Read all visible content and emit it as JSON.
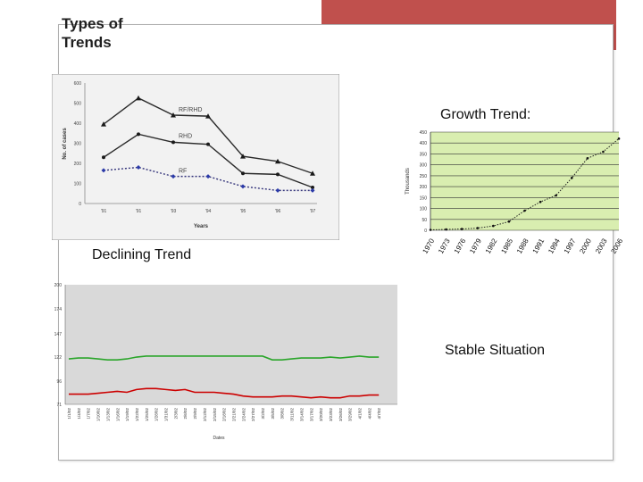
{
  "slide": {
    "title_line1": "Types of",
    "title_line2": "Trends",
    "labels": {
      "growth": "Growth Trend:",
      "declining": "Declining Trend",
      "stable": "Stable Situation"
    }
  },
  "colors": {
    "accent_block": "#c0504d",
    "green_band": "#d9eeb0",
    "gray_plot": "#d9d9d9"
  },
  "chart_data": [
    {
      "type": "line",
      "x": [
        "'91",
        "'91",
        "'93",
        "'94",
        "'95",
        "'96",
        "'97"
      ],
      "xlabel": "Years",
      "ylabel": "No. of cases",
      "yticks": [
        "0",
        "100",
        "200",
        "300",
        "400",
        "500",
        "600"
      ],
      "ylim": [
        0,
        600
      ],
      "series": [
        {
          "name": "RF/RHD",
          "values": [
            395,
            525,
            440,
            435,
            235,
            210,
            150
          ]
        },
        {
          "name": "RHD",
          "values": [
            230,
            345,
            305,
            295,
            150,
            145,
            80
          ]
        },
        {
          "name": "RF",
          "values": [
            165,
            180,
            135,
            135,
            85,
            65,
            65
          ]
        }
      ],
      "legend": "inline"
    },
    {
      "type": "line",
      "x": [
        "1970",
        "1973",
        "1976",
        "1979",
        "1982",
        "1985",
        "1988",
        "1991",
        "1994",
        "1997",
        "2000",
        "2003",
        "2006"
      ],
      "ylabel": "Thousands",
      "yticks": [
        "0",
        "50",
        "100",
        "150",
        "200",
        "250",
        "300",
        "350",
        "400",
        "450"
      ],
      "ylim": [
        0,
        450
      ],
      "series": [
        {
          "values": [
            2,
            4,
            6,
            10,
            20,
            40,
            90,
            130,
            160,
            240,
            330,
            360,
            420
          ]
        }
      ]
    },
    {
      "type": "line",
      "x": [
        "1/1/02",
        "1/4/02",
        "1/7/02",
        "1/10/02",
        "1/13/02",
        "1/16/02",
        "1/19/02",
        "1/22/02",
        "1/25/02",
        "1/28/02",
        "1/31/02",
        "2/3/02",
        "2/6/02",
        "2/9/02",
        "2/12/02",
        "2/15/02",
        "2/18/02",
        "2/21/02",
        "2/24/02",
        "2/27/02",
        "3/2/02",
        "3/5/02",
        "3/8/02",
        "3/11/02",
        "3/14/02",
        "3/17/02",
        "3/20/02",
        "3/23/02",
        "3/26/02",
        "3/29/02",
        "4/1/02",
        "4/4/02",
        "4/7/02"
      ],
      "xlabel": "Dates",
      "yticks": [
        "71",
        "96",
        "122",
        "147",
        "174",
        "200"
      ],
      "ylim": [
        71,
        200
      ],
      "series": [
        {
          "values": [
            120,
            121,
            121,
            120,
            119,
            119,
            120,
            122,
            123,
            123,
            123,
            123,
            123,
            123,
            123,
            123,
            123,
            123,
            123,
            123,
            123,
            119,
            119,
            120,
            121,
            121,
            121,
            122,
            121,
            122,
            123,
            122,
            122
          ]
        },
        {
          "values": [
            82,
            82,
            82,
            83,
            84,
            85,
            84,
            87,
            88,
            88,
            87,
            86,
            87,
            84,
            84,
            84,
            83,
            82,
            80,
            79,
            79,
            79,
            80,
            80,
            79,
            78,
            79,
            78,
            78,
            80,
            80,
            81,
            81
          ]
        }
      ]
    }
  ]
}
